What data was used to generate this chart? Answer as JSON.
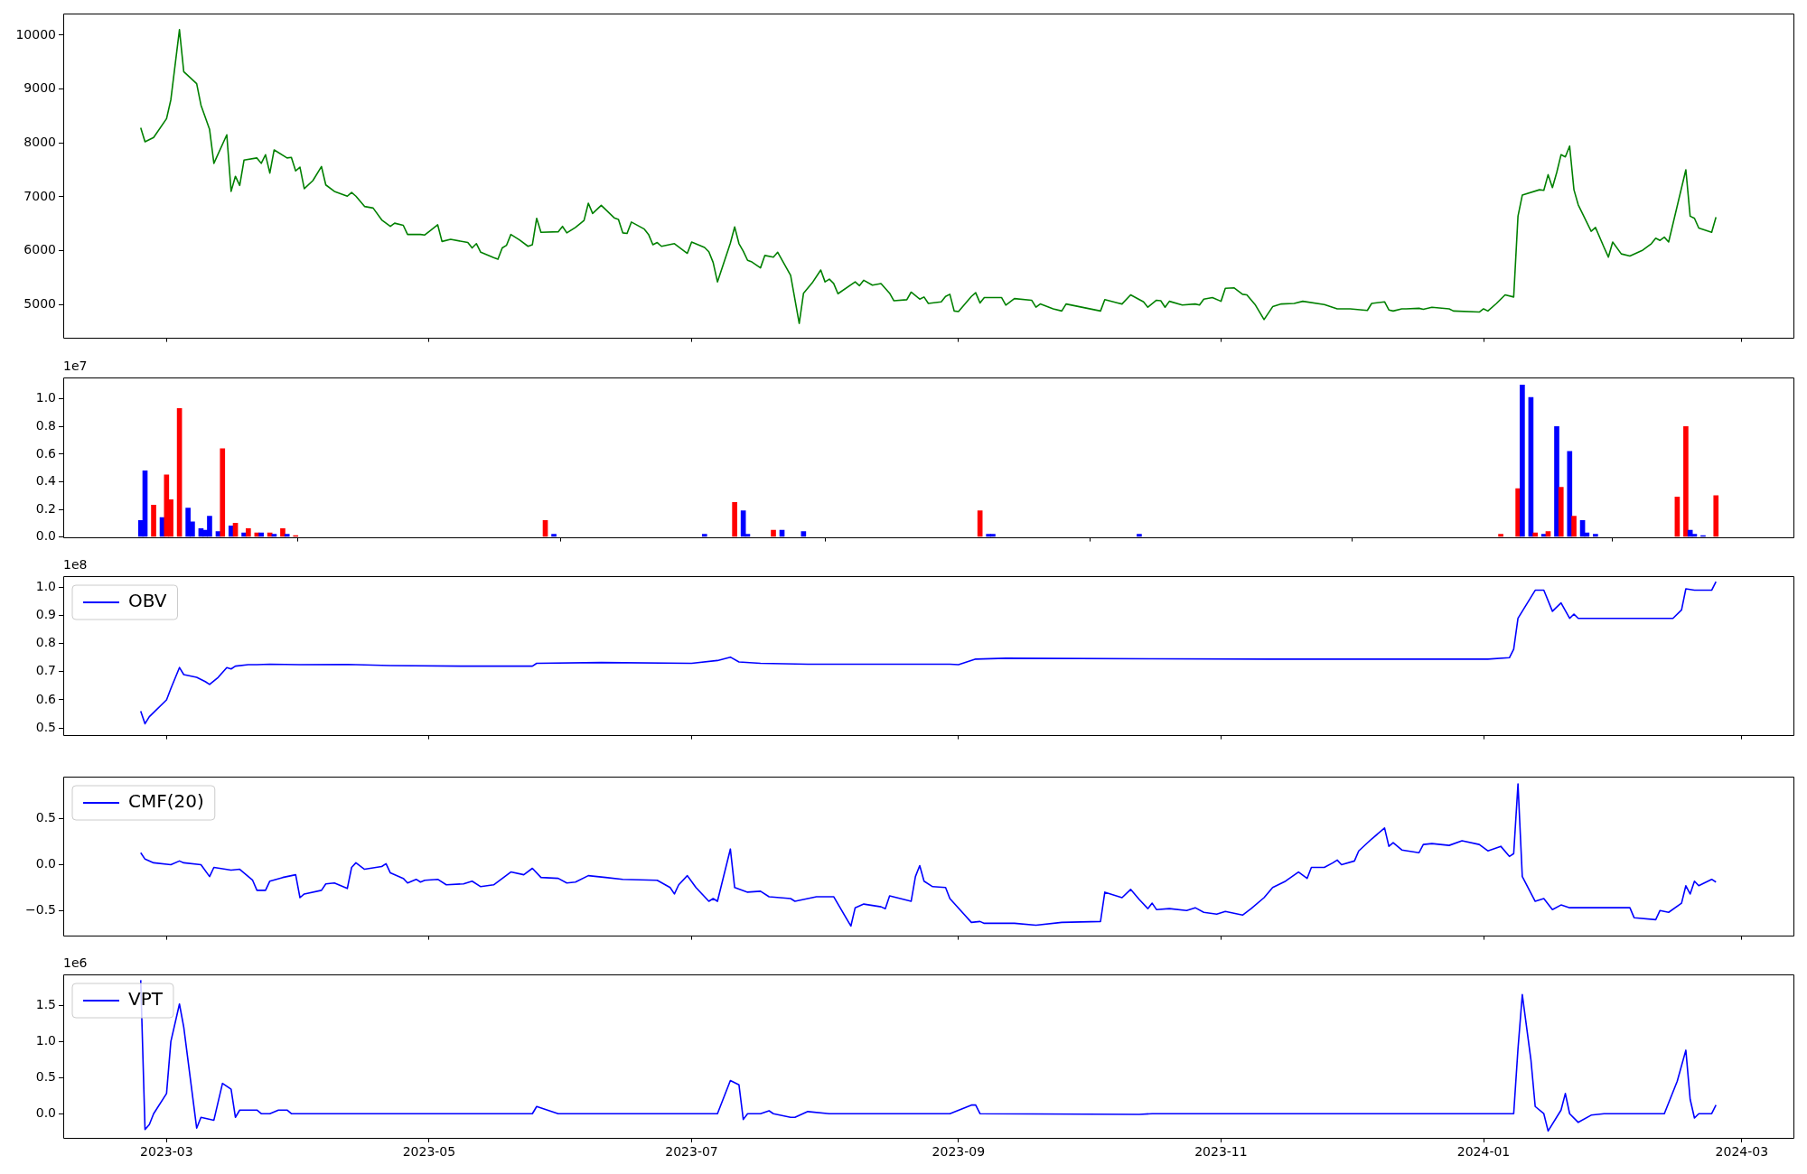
{
  "chart_data": [
    {
      "type": "line",
      "tick_labels": "y",
      "xlim": [
        "2023-02-05",
        "2024-03-13"
      ],
      "xticks": [
        {
          "value": "2023-03-01",
          "label": null
        },
        {
          "value": "2023-05-01",
          "label": null
        },
        {
          "value": "2023-07-01",
          "label": null
        },
        {
          "value": "2023-09-01",
          "label": null
        },
        {
          "value": "2023-11-01",
          "label": null
        },
        {
          "value": "2024-01-01",
          "label": null
        },
        {
          "value": "2024-03-01",
          "label": null
        }
      ],
      "ylim": [
        4390,
        10400
      ],
      "yticks": [
        5000,
        6000,
        7000,
        8000,
        9000,
        10000
      ],
      "x": [
        "2023-02-23",
        "2023-02-24",
        "2023-02-26",
        "2023-03-01",
        "2023-03-02",
        "2023-03-04",
        "2023-03-05",
        "2023-03-08",
        "2023-03-09",
        "2023-03-11",
        "2023-03-12",
        "2023-03-15",
        "2023-03-16",
        "2023-03-17",
        "2023-03-18",
        "2023-03-19",
        "2023-03-22",
        "2023-03-23",
        "2023-03-24",
        "2023-03-25",
        "2023-03-26",
        "2023-03-29",
        "2023-03-30",
        "2023-03-31",
        "2023-04-01",
        "2023-04-02",
        "2023-04-04",
        "2023-04-06",
        "2023-04-07",
        "2023-04-09",
        "2023-04-12",
        "2023-04-13",
        "2023-04-14",
        "2023-04-16",
        "2023-04-18",
        "2023-04-20",
        "2023-04-22",
        "2023-04-23",
        "2023-04-25",
        "2023-04-26",
        "2023-04-29",
        "2023-04-30",
        "2023-05-03",
        "2023-05-04",
        "2023-05-06",
        "2023-05-10",
        "2023-05-11",
        "2023-05-12",
        "2023-05-13",
        "2023-05-16",
        "2023-05-17",
        "2023-05-18",
        "2023-05-19",
        "2023-05-20",
        "2023-05-22",
        "2023-05-24",
        "2023-05-25",
        "2023-05-26",
        "2023-05-27",
        "2023-05-31",
        "2023-06-01",
        "2023-06-02",
        "2023-06-04",
        "2023-06-06",
        "2023-06-07",
        "2023-06-08",
        "2023-06-10",
        "2023-06-13",
        "2023-06-14",
        "2023-06-15",
        "2023-06-16",
        "2023-06-17",
        "2023-06-20",
        "2023-06-21",
        "2023-06-22",
        "2023-06-23",
        "2023-06-24",
        "2023-06-27",
        "2023-06-30",
        "2023-07-01",
        "2023-07-04",
        "2023-07-05",
        "2023-07-06",
        "2023-07-07",
        "2023-07-10",
        "2023-07-11",
        "2023-07-12",
        "2023-07-13",
        "2023-07-14",
        "2023-07-15",
        "2023-07-17",
        "2023-07-18",
        "2023-07-20",
        "2023-07-21",
        "2023-07-24",
        "2023-07-26",
        "2023-07-27",
        "2023-07-29",
        "2023-07-31",
        "2023-08-01",
        "2023-08-02",
        "2023-08-03",
        "2023-08-04",
        "2023-08-08",
        "2023-08-09",
        "2023-08-10",
        "2023-08-12",
        "2023-08-14",
        "2023-08-16",
        "2023-08-17",
        "2023-08-20",
        "2023-08-21",
        "2023-08-23",
        "2023-08-24",
        "2023-08-25",
        "2023-08-28",
        "2023-08-29",
        "2023-08-30",
        "2023-08-31",
        "2023-09-01",
        "2023-09-04",
        "2023-09-05",
        "2023-09-06",
        "2023-09-07",
        "2023-09-11",
        "2023-09-12",
        "2023-09-14",
        "2023-09-18",
        "2023-09-19",
        "2023-09-20",
        "2023-09-23",
        "2023-09-25",
        "2023-09-26",
        "2023-10-04",
        "2023-10-05",
        "2023-10-08",
        "2023-10-09",
        "2023-10-11",
        "2023-10-14",
        "2023-10-15",
        "2023-10-17",
        "2023-10-18",
        "2023-10-19",
        "2023-10-20",
        "2023-10-23",
        "2023-10-26",
        "2023-10-27",
        "2023-10-28",
        "2023-10-30",
        "2023-11-01",
        "2023-11-02",
        "2023-11-04",
        "2023-11-06",
        "2023-11-07",
        "2023-11-09",
        "2023-11-11",
        "2023-11-13",
        "2023-11-15",
        "2023-11-18",
        "2023-11-20",
        "2023-11-25",
        "2023-11-28",
        "2023-12-01",
        "2023-12-05",
        "2023-12-06",
        "2023-12-09",
        "2023-12-10",
        "2023-12-11",
        "2023-12-13",
        "2023-12-14",
        "2023-12-17",
        "2023-12-18",
        "2023-12-20",
        "2023-12-24",
        "2023-12-25",
        "2023-12-31",
        "2024-01-01",
        "2024-01-02",
        "2024-01-04",
        "2024-01-06",
        "2024-01-08",
        "2024-01-09",
        "2024-01-10",
        "2024-01-14",
        "2024-01-15",
        "2024-01-16",
        "2024-01-17",
        "2024-01-18",
        "2024-01-19",
        "2024-01-20",
        "2024-01-21",
        "2024-01-22",
        "2024-01-23",
        "2024-01-26",
        "2024-01-27",
        "2024-01-29",
        "2024-01-30",
        "2024-01-31",
        "2024-02-02",
        "2024-02-04",
        "2024-02-07",
        "2024-02-09",
        "2024-02-10",
        "2024-02-11",
        "2024-02-12",
        "2024-02-13",
        "2024-02-17",
        "2024-02-18",
        "2024-02-19",
        "2024-02-20",
        "2024-02-23",
        "2024-02-24"
      ],
      "series": [
        {
          "color": "#008000",
          "values": [
            8280,
            8020,
            8100,
            8450,
            8800,
            10100,
            9320,
            9100,
            8700,
            8250,
            7620,
            8150,
            7100,
            7380,
            7210,
            7680,
            7720,
            7620,
            7780,
            7440,
            7870,
            7720,
            7730,
            7480,
            7550,
            7150,
            7300,
            7560,
            7220,
            7100,
            7010,
            7080,
            7010,
            6820,
            6790,
            6570,
            6450,
            6510,
            6470,
            6300,
            6300,
            6290,
            6480,
            6170,
            6210,
            6150,
            6050,
            6130,
            5970,
            5870,
            5840,
            6050,
            6100,
            6300,
            6200,
            6080,
            6110,
            6600,
            6340,
            6350,
            6450,
            6330,
            6430,
            6560,
            6880,
            6690,
            6840,
            6610,
            6580,
            6330,
            6320,
            6530,
            6400,
            6300,
            6110,
            6150,
            6080,
            6130,
            5950,
            6160,
            6060,
            5980,
            5780,
            5420,
            6140,
            6440,
            6130,
            5990,
            5820,
            5790,
            5680,
            5910,
            5880,
            5970,
            5540,
            4650,
            5210,
            5400,
            5640,
            5420,
            5470,
            5390,
            5200,
            5420,
            5350,
            5450,
            5360,
            5390,
            5210,
            5070,
            5090,
            5230,
            5100,
            5140,
            5020,
            5050,
            5150,
            5190,
            4880,
            4870,
            5150,
            5220,
            5030,
            5130,
            5130,
            4990,
            5110,
            5080,
            4950,
            5010,
            4920,
            4880,
            5010,
            4880,
            5090,
            5030,
            5010,
            5180,
            5050,
            4950,
            5080,
            5070,
            4950,
            5060,
            4990,
            5010,
            4990,
            5100,
            5130,
            5060,
            5300,
            5310,
            5190,
            5180,
            4990,
            4720,
            4960,
            5010,
            5020,
            5060,
            5000,
            4920,
            4920,
            4890,
            5020,
            5050,
            4900,
            4880,
            4920,
            4920,
            4930,
            4910,
            4950,
            4920,
            4880,
            4860,
            4920,
            4880,
            5020,
            5180,
            5140,
            6640,
            7030,
            7130,
            7120,
            7410,
            7170,
            7450,
            7780,
            7740,
            7940,
            7130,
            6850,
            6360,
            6430,
            6060,
            5880,
            6160,
            5940,
            5900,
            6010,
            6130,
            6230,
            6190,
            6250,
            6160,
            7500,
            6640,
            6600,
            6420,
            6340,
            6620
          ]
        }
      ]
    },
    {
      "type": "bar",
      "tick_labels": "y",
      "annotations": [
        "1e7"
      ],
      "xlim": [
        "2023-02-05",
        "2024-03-13"
      ],
      "xticks": [
        {
          "value": "2023-03-01",
          "label": null
        },
        {
          "value": "2023-05-01",
          "label": null
        },
        {
          "value": "2023-07-01",
          "label": null
        },
        {
          "value": "2023-09-01",
          "label": null
        },
        {
          "value": "2023-11-01",
          "label": null
        },
        {
          "value": "2024-01-01",
          "label": null
        },
        {
          "value": "2024-03-01",
          "label": null
        }
      ],
      "ylim": [
        0,
        1.155
      ],
      "yticks": [
        {
          "value": 0,
          "label": "0.0"
        },
        {
          "value": 0.2,
          "label": "0.2"
        },
        {
          "value": 0.4,
          "label": "0.4"
        },
        {
          "value": 0.6,
          "label": "0.6"
        },
        {
          "value": 0.8,
          "label": "0.8"
        },
        {
          "value": 1,
          "label": "1.0"
        }
      ],
      "x": [
        "2023-02-23",
        "2023-02-24",
        "2023-02-26",
        "2023-02-28",
        "2023-03-01",
        "2023-03-02",
        "2023-03-04",
        "2023-03-06",
        "2023-03-07",
        "2023-03-09",
        "2023-03-10",
        "2023-03-11",
        "2023-03-13",
        "2023-03-14",
        "2023-03-16",
        "2023-03-17",
        "2023-03-19",
        "2023-03-20",
        "2023-03-22",
        "2023-03-23",
        "2023-03-25",
        "2023-03-26",
        "2023-03-28",
        "2023-03-29",
        "2023-03-31",
        "2023-05-28",
        "2023-05-30",
        "2023-06-02",
        "2023-07-04",
        "2023-07-11",
        "2023-07-13",
        "2023-07-14",
        "2023-07-20",
        "2023-07-22",
        "2023-07-27",
        "2023-09-06",
        "2023-09-08",
        "2023-09-09",
        "2023-10-13",
        "2024-01-05",
        "2024-01-09",
        "2024-01-10",
        "2024-01-12",
        "2024-01-13",
        "2024-01-15",
        "2024-01-16",
        "2024-01-18",
        "2024-01-19",
        "2024-01-21",
        "2024-01-22",
        "2024-01-24",
        "2024-01-25",
        "2024-01-27",
        "2024-01-28",
        "2024-02-15",
        "2024-02-17",
        "2024-02-18",
        "2024-02-19",
        "2024-02-21",
        "2024-02-24"
      ],
      "values": [
        0.12,
        0.48,
        0.23,
        0.14,
        0.45,
        0.27,
        0.93,
        0.21,
        0.11,
        0.06,
        0.05,
        0.15,
        0.04,
        0.64,
        0.08,
        0.1,
        0.03,
        0.06,
        0.03,
        0.03,
        0.03,
        0.02,
        0.06,
        0.02,
        0.01,
        0.12,
        0.02,
        null,
        0.02,
        0.25,
        0.19,
        0.02,
        0.05,
        0.05,
        0.04,
        0.19,
        0.02,
        0.02,
        0.02,
        0.02,
        0.35,
        1.1,
        1.01,
        0.03,
        0.02,
        0.04,
        0.8,
        0.36,
        0.62,
        0.15,
        0.12,
        0.03,
        0.02,
        null,
        0.29,
        0.8,
        0.05,
        0.02,
        0.01,
        0.3
      ],
      "colors": [
        "#0000ff",
        "#0000ff",
        "#ff0000",
        "#0000ff",
        "#ff0000",
        "#ff0000",
        "#ff0000",
        "#0000ff",
        "#0000ff",
        "#0000ff",
        "#0000ff",
        "#0000ff",
        "#0000ff",
        "#ff0000",
        "#0000ff",
        "#ff0000",
        "#0000ff",
        "#ff0000",
        "#ff0000",
        "#0000ff",
        "#ff0000",
        "#0000ff",
        "#ff0000",
        "#0000ff",
        "#ff0000",
        "#ff0000",
        "#0000ff",
        "#ff0000",
        "#0000ff",
        "#ff0000",
        "#0000ff",
        "#0000ff",
        "#ff0000",
        "#0000ff",
        "#0000ff",
        "#ff0000",
        "#0000ff",
        "#0000ff",
        "#0000ff",
        "#ff0000",
        "#ff0000",
        "#0000ff",
        "#0000ff",
        "#ff0000",
        "#0000ff",
        "#ff0000",
        "#0000ff",
        "#ff0000",
        "#0000ff",
        "#ff0000",
        "#0000ff",
        "#0000ff",
        "#0000ff",
        "#ff0000",
        "#ff0000",
        "#ff0000",
        "#0000ff",
        "#0000ff",
        "#0000ff",
        "#ff0000"
      ]
    },
    {
      "type": "line",
      "tick_labels": "y",
      "legend": "top left",
      "annotations": [
        "1e8"
      ],
      "xlim": [
        "2023-02-05",
        "2024-03-13"
      ],
      "xticks": [
        {
          "value": "2023-03-01",
          "label": null
        },
        {
          "value": "2023-05-01",
          "label": null
        },
        {
          "value": "2023-07-01",
          "label": null
        },
        {
          "value": "2023-09-01",
          "label": null
        },
        {
          "value": "2023-11-01",
          "label": null
        },
        {
          "value": "2024-01-01",
          "label": null
        },
        {
          "value": "2024-03-01",
          "label": null
        }
      ],
      "ylim": [
        0.476,
        1.04
      ],
      "yticks": [
        {
          "value": 0.5,
          "label": "0.5"
        },
        {
          "value": 0.6,
          "label": "0.6"
        },
        {
          "value": 0.7,
          "label": "0.7"
        },
        {
          "value": 0.8,
          "label": "0.8"
        },
        {
          "value": 0.9,
          "label": "0.9"
        },
        {
          "value": 1,
          "label": "1.0"
        }
      ],
      "x": [
        "2023-02-23",
        "2023-02-24",
        "2023-02-25",
        "2023-03-01",
        "2023-03-02",
        "2023-03-04",
        "2023-03-05",
        "2023-03-08",
        "2023-03-10",
        "2023-03-11",
        "2023-03-13",
        "2023-03-15",
        "2023-03-16",
        "2023-03-17",
        "2023-03-20",
        "2023-03-22",
        "2023-03-25",
        "2023-04-01",
        "2023-04-12",
        "2023-04-22",
        "2023-05-09",
        "2023-05-25",
        "2023-05-26",
        "2023-06-10",
        "2023-07-01",
        "2023-07-07",
        "2023-07-10",
        "2023-07-12",
        "2023-07-17",
        "2023-07-28",
        "2023-08-30",
        "2023-09-01",
        "2023-09-05",
        "2023-09-12",
        "2023-10-16",
        "2023-11-12",
        "2024-01-02",
        "2024-01-07",
        "2024-01-08",
        "2024-01-09",
        "2024-01-13",
        "2024-01-15",
        "2024-01-17",
        "2024-01-19",
        "2024-01-21",
        "2024-01-22",
        "2024-01-23",
        "2024-02-14",
        "2024-02-16",
        "2024-02-17",
        "2024-02-19",
        "2024-02-23",
        "2024-02-24"
      ],
      "series": [
        {
          "name": "OBV",
          "color": "#0000ff",
          "values": [
            0.56,
            0.515,
            0.54,
            0.6,
            0.64,
            0.715,
            0.69,
            0.68,
            0.665,
            0.655,
            0.68,
            0.715,
            0.71,
            0.72,
            0.725,
            0.725,
            0.727,
            0.725,
            0.726,
            0.722,
            0.72,
            0.72,
            0.73,
            0.733,
            0.73,
            0.74,
            0.752,
            0.735,
            0.73,
            0.727,
            0.727,
            0.725,
            0.745,
            0.748,
            0.746,
            0.745,
            0.745,
            0.75,
            0.78,
            0.89,
            0.99,
            0.99,
            0.915,
            0.945,
            0.89,
            0.905,
            0.89,
            0.89,
            0.92,
            0.995,
            0.99,
            0.99,
            1.02
          ]
        }
      ]
    },
    {
      "type": "line",
      "tick_labels": "y",
      "legend": "top left",
      "xlim": [
        "2023-02-05",
        "2024-03-13"
      ],
      "xticks": [
        {
          "value": "2023-03-01",
          "label": null
        },
        {
          "value": "2023-05-01",
          "label": null
        },
        {
          "value": "2023-07-01",
          "label": null
        },
        {
          "value": "2023-09-01",
          "label": null
        },
        {
          "value": "2023-11-01",
          "label": null
        },
        {
          "value": "2024-01-01",
          "label": null
        },
        {
          "value": "2024-03-01",
          "label": null
        }
      ],
      "ylim": [
        -0.77,
        0.96
      ],
      "yticks": [
        {
          "value": -0.5,
          "label": "−0.5"
        },
        {
          "value": 0,
          "label": "0.0"
        },
        {
          "value": 0.5,
          "label": "0.5"
        }
      ],
      "x": [
        "2023-02-23",
        "2023-02-24",
        "2023-02-26",
        "2023-03-02",
        "2023-03-04",
        "2023-03-05",
        "2023-03-09",
        "2023-03-11",
        "2023-03-12",
        "2023-03-16",
        "2023-03-18",
        "2023-03-21",
        "2023-03-22",
        "2023-03-24",
        "2023-03-25",
        "2023-03-28",
        "2023-03-31",
        "2023-04-01",
        "2023-04-02",
        "2023-04-06",
        "2023-04-07",
        "2023-04-09",
        "2023-04-12",
        "2023-04-13",
        "2023-04-14",
        "2023-04-16",
        "2023-04-20",
        "2023-04-21",
        "2023-04-22",
        "2023-04-25",
        "2023-04-26",
        "2023-04-28",
        "2023-04-29",
        "2023-04-30",
        "2023-05-03",
        "2023-05-05",
        "2023-05-09",
        "2023-05-11",
        "2023-05-13",
        "2023-05-16",
        "2023-05-20",
        "2023-05-23",
        "2023-05-25",
        "2023-05-27",
        "2023-05-31",
        "2023-06-02",
        "2023-06-04",
        "2023-06-07",
        "2023-06-11",
        "2023-06-15",
        "2023-06-23",
        "2023-06-26",
        "2023-06-27",
        "2023-06-28",
        "2023-06-30",
        "2023-07-02",
        "2023-07-05",
        "2023-07-06",
        "2023-07-07",
        "2023-07-10",
        "2023-07-11",
        "2023-07-14",
        "2023-07-17",
        "2023-07-19",
        "2023-07-24",
        "2023-07-25",
        "2023-07-30",
        "2023-08-03",
        "2023-08-07",
        "2023-08-08",
        "2023-08-10",
        "2023-08-14",
        "2023-08-15",
        "2023-08-16",
        "2023-08-21",
        "2023-08-22",
        "2023-08-23",
        "2023-08-24",
        "2023-08-26",
        "2023-08-29",
        "2023-08-30",
        "2023-09-04",
        "2023-09-06",
        "2023-09-07",
        "2023-09-14",
        "2023-09-19",
        "2023-09-25",
        "2023-10-04",
        "2023-10-05",
        "2023-10-09",
        "2023-10-11",
        "2023-10-13",
        "2023-10-15",
        "2023-10-16",
        "2023-10-17",
        "2023-10-20",
        "2023-10-24",
        "2023-10-26",
        "2023-10-28",
        "2023-10-31",
        "2023-11-02",
        "2023-11-06",
        "2023-11-08",
        "2023-11-11",
        "2023-11-13",
        "2023-11-16",
        "2023-11-19",
        "2023-11-21",
        "2023-11-22",
        "2023-11-25",
        "2023-11-27",
        "2023-11-28",
        "2023-11-29",
        "2023-12-02",
        "2023-12-03",
        "2023-12-06",
        "2023-12-09",
        "2023-12-10",
        "2023-12-11",
        "2023-12-13",
        "2023-12-17",
        "2023-12-18",
        "2023-12-20",
        "2023-12-24",
        "2023-12-27",
        "2023-12-31",
        "2024-01-02",
        "2024-01-05",
        "2024-01-07",
        "2024-01-08",
        "2024-01-09",
        "2024-01-10",
        "2024-01-13",
        "2024-01-15",
        "2024-01-17",
        "2024-01-19",
        "2024-01-21",
        "2024-01-26",
        "2024-02-04",
        "2024-02-05",
        "2024-02-10",
        "2024-02-11",
        "2024-02-13",
        "2024-02-16",
        "2024-02-17",
        "2024-02-18",
        "2024-02-19",
        "2024-02-20",
        "2024-02-23",
        "2024-02-24"
      ],
      "series": [
        {
          "name": "CMF(20)",
          "color": "#0000ff",
          "values": [
            0.13,
            0.06,
            0.02,
            0.0,
            0.04,
            0.02,
            0.0,
            -0.13,
            -0.03,
            -0.06,
            -0.05,
            -0.17,
            -0.28,
            -0.28,
            -0.18,
            -0.14,
            -0.11,
            -0.36,
            -0.32,
            -0.28,
            -0.21,
            -0.2,
            -0.26,
            -0.03,
            0.02,
            -0.05,
            -0.02,
            0.01,
            -0.09,
            -0.15,
            -0.2,
            -0.16,
            -0.19,
            -0.17,
            -0.16,
            -0.22,
            -0.21,
            -0.18,
            -0.24,
            -0.22,
            -0.08,
            -0.11,
            -0.04,
            -0.14,
            -0.15,
            -0.2,
            -0.19,
            -0.12,
            -0.14,
            -0.16,
            -0.17,
            -0.25,
            -0.32,
            -0.22,
            -0.12,
            -0.25,
            -0.4,
            -0.37,
            -0.4,
            0.17,
            -0.25,
            -0.3,
            -0.29,
            -0.35,
            -0.37,
            -0.4,
            -0.35,
            -0.35,
            -0.67,
            -0.47,
            -0.43,
            -0.46,
            -0.48,
            -0.34,
            -0.4,
            -0.13,
            -0.01,
            -0.18,
            -0.24,
            -0.25,
            -0.37,
            -0.63,
            -0.62,
            -0.64,
            -0.64,
            -0.66,
            -0.63,
            -0.62,
            -0.3,
            -0.36,
            -0.27,
            -0.38,
            -0.48,
            -0.42,
            -0.49,
            -0.48,
            -0.5,
            -0.47,
            -0.52,
            -0.54,
            -0.51,
            -0.55,
            -0.48,
            -0.36,
            -0.25,
            -0.18,
            -0.08,
            -0.15,
            -0.03,
            -0.03,
            0.02,
            0.05,
            0.0,
            0.04,
            0.15,
            0.28,
            0.4,
            0.2,
            0.24,
            0.16,
            0.13,
            0.22,
            0.23,
            0.21,
            0.26,
            0.22,
            0.15,
            0.2,
            0.09,
            0.12,
            0.88,
            -0.13,
            -0.4,
            -0.37,
            -0.49,
            -0.44,
            -0.47,
            -0.47,
            -0.47,
            -0.58,
            -0.6,
            -0.5,
            -0.52,
            -0.42,
            -0.23,
            -0.32,
            -0.18,
            -0.23,
            -0.16,
            -0.19
          ]
        }
      ]
    },
    {
      "type": "line",
      "legend": "top left",
      "annotations": [
        "1e6"
      ],
      "xlim": [
        "2023-02-05",
        "2024-03-13"
      ],
      "xticks": [
        {
          "value": "2023-03-01",
          "label": "2023-03"
        },
        {
          "value": "2023-05-01",
          "label": "2023-05"
        },
        {
          "value": "2023-07-01",
          "label": "2023-07"
        },
        {
          "value": "2023-09-01",
          "label": "2023-09"
        },
        {
          "value": "2023-11-01",
          "label": "2023-11"
        },
        {
          "value": "2024-01-01",
          "label": "2024-01"
        },
        {
          "value": "2024-03-01",
          "label": "2024-03"
        }
      ],
      "ylim": [
        -0.335,
        1.93
      ],
      "yticks": [
        {
          "value": 0,
          "label": "0.0"
        },
        {
          "value": 0.5,
          "label": "0.5"
        },
        {
          "value": 1,
          "label": "1.0"
        },
        {
          "value": 1.5,
          "label": "1.5"
        }
      ],
      "x": [
        "2023-02-23",
        "2023-02-24",
        "2023-02-25",
        "2023-02-26",
        "2023-03-01",
        "2023-03-02",
        "2023-03-04",
        "2023-03-05",
        "2023-03-08",
        "2023-03-09",
        "2023-03-12",
        "2023-03-14",
        "2023-03-16",
        "2023-03-17",
        "2023-03-18",
        "2023-03-22",
        "2023-03-23",
        "2023-03-25",
        "2023-03-27",
        "2023-03-29",
        "2023-03-30",
        "2023-04-12",
        "2023-05-25",
        "2023-05-26",
        "2023-05-31",
        "2023-06-15",
        "2023-07-07",
        "2023-07-10",
        "2023-07-12",
        "2023-07-13",
        "2023-07-14",
        "2023-07-17",
        "2023-07-19",
        "2023-07-20",
        "2023-07-24",
        "2023-07-25",
        "2023-07-28",
        "2023-08-02",
        "2023-08-30",
        "2023-09-04",
        "2023-09-05",
        "2023-09-06",
        "2023-10-13",
        "2023-10-16",
        "2024-01-05",
        "2024-01-08",
        "2024-01-09",
        "2024-01-10",
        "2024-01-12",
        "2024-01-13",
        "2024-01-15",
        "2024-01-16",
        "2024-01-19",
        "2024-01-20",
        "2024-01-21",
        "2024-01-23",
        "2024-01-26",
        "2024-01-29",
        "2024-02-12",
        "2024-02-15",
        "2024-02-17",
        "2024-02-18",
        "2024-02-19",
        "2024-02-20",
        "2024-02-23",
        "2024-02-24"
      ],
      "series": [
        {
          "name": "VPT",
          "color": "#0000ff",
          "values": [
            1.85,
            -0.22,
            -0.15,
            0.0,
            0.28,
            1.0,
            1.52,
            1.2,
            -0.2,
            -0.05,
            -0.09,
            0.42,
            0.34,
            -0.05,
            0.05,
            0.05,
            0.0,
            0.0,
            0.05,
            0.05,
            0.0,
            0.0,
            0.0,
            0.1,
            0.0,
            0.0,
            0.0,
            0.46,
            0.4,
            -0.08,
            0.0,
            0.0,
            0.04,
            0.0,
            -0.05,
            -0.05,
            0.03,
            0.0,
            0.0,
            0.12,
            0.12,
            0.0,
            -0.01,
            0.0,
            0.0,
            0.0,
            0.9,
            1.65,
            0.75,
            0.1,
            0.0,
            -0.24,
            0.05,
            0.28,
            0.0,
            -0.12,
            -0.02,
            0.0,
            0.0,
            0.45,
            0.88,
            0.2,
            -0.06,
            0.0,
            0.0,
            0.12
          ]
        }
      ]
    }
  ]
}
